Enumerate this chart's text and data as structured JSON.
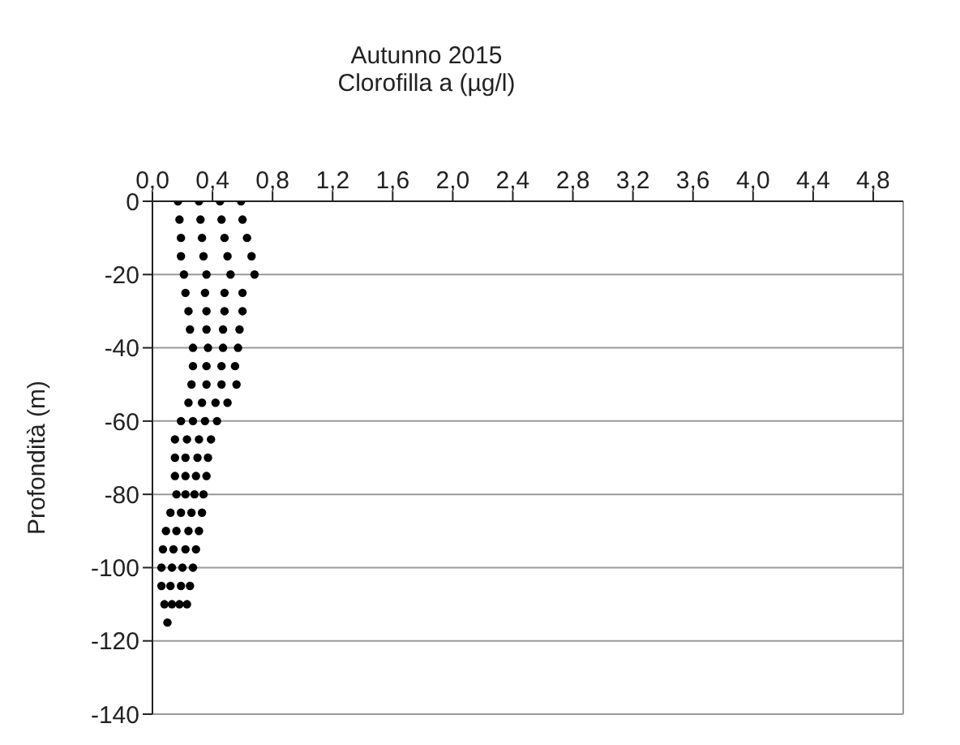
{
  "chart_data": {
    "type": "scatter",
    "title": "Autunno 2015",
    "xlabel": "Clorofilla a (µg/l)",
    "ylabel": "Profondità (m)",
    "xlim": [
      0,
      5
    ],
    "xticks": [
      {
        "value": 0,
        "label": "0,0"
      },
      {
        "value": 0.4,
        "label": "0,4"
      },
      {
        "value": 0.8,
        "label": "0,8"
      },
      {
        "value": 1.2,
        "label": "1,2"
      },
      {
        "value": 1.6,
        "label": "1,6"
      },
      {
        "value": 2,
        "label": "2,0"
      },
      {
        "value": 2.4,
        "label": "2,4"
      },
      {
        "value": 2.8,
        "label": "2,8"
      },
      {
        "value": 3.2,
        "label": "3,2"
      },
      {
        "value": 3.6,
        "label": "3,6"
      },
      {
        "value": 4,
        "label": "4,0"
      },
      {
        "value": 4.4,
        "label": "4,4"
      },
      {
        "value": 4.8,
        "label": "4,8"
      }
    ],
    "ylim": [
      -140,
      0
    ],
    "yticks": [
      -140,
      -120,
      -100,
      -80,
      -60,
      -40,
      -20,
      0
    ],
    "grid": "y",
    "legend": false,
    "marker": "circle",
    "series": [
      {
        "color": "#000000",
        "x": [
          0.17,
          0.31,
          0.45,
          0.59,
          0.18,
          0.32,
          0.46,
          0.6,
          0.19,
          0.33,
          0.48,
          0.63,
          0.19,
          0.34,
          0.5,
          0.66,
          0.21,
          0.36,
          0.52,
          0.68,
          0.22,
          0.35,
          0.48,
          0.6,
          0.24,
          0.36,
          0.48,
          0.6,
          0.25,
          0.36,
          0.47,
          0.58,
          0.27,
          0.37,
          0.47,
          0.57,
          0.27,
          0.36,
          0.46,
          0.55,
          0.26,
          0.36,
          0.46,
          0.56,
          0.24,
          0.33,
          0.42,
          0.5,
          0.19,
          0.27,
          0.35,
          0.43,
          0.15,
          0.23,
          0.31,
          0.39,
          0.15,
          0.22,
          0.3,
          0.37,
          0.15,
          0.22,
          0.29,
          0.36,
          0.16,
          0.22,
          0.28,
          0.34,
          0.12,
          0.19,
          0.26,
          0.33,
          0.09,
          0.16,
          0.24,
          0.31,
          0.07,
          0.14,
          0.22,
          0.29,
          0.06,
          0.13,
          0.2,
          0.27,
          0.06,
          0.12,
          0.19,
          0.25,
          0.08,
          0.13,
          0.18,
          0.23,
          0.1
        ],
        "values": [
          0,
          0,
          0,
          0,
          -5,
          -5,
          -5,
          -5,
          -10,
          -10,
          -10,
          -10,
          -15,
          -15,
          -15,
          -15,
          -20,
          -20,
          -20,
          -20,
          -25,
          -25,
          -25,
          -25,
          -30,
          -30,
          -30,
          -30,
          -35,
          -35,
          -35,
          -35,
          -40,
          -40,
          -40,
          -40,
          -45,
          -45,
          -45,
          -45,
          -50,
          -50,
          -50,
          -50,
          -55,
          -55,
          -55,
          -55,
          -60,
          -60,
          -60,
          -60,
          -65,
          -65,
          -65,
          -65,
          -70,
          -70,
          -70,
          -70,
          -75,
          -75,
          -75,
          -75,
          -80,
          -80,
          -80,
          -80,
          -85,
          -85,
          -85,
          -85,
          -90,
          -90,
          -90,
          -90,
          -95,
          -95,
          -95,
          -95,
          -100,
          -100,
          -100,
          -100,
          -105,
          -105,
          -105,
          -105,
          -110,
          -110,
          -110,
          -110,
          -115
        ]
      }
    ]
  }
}
